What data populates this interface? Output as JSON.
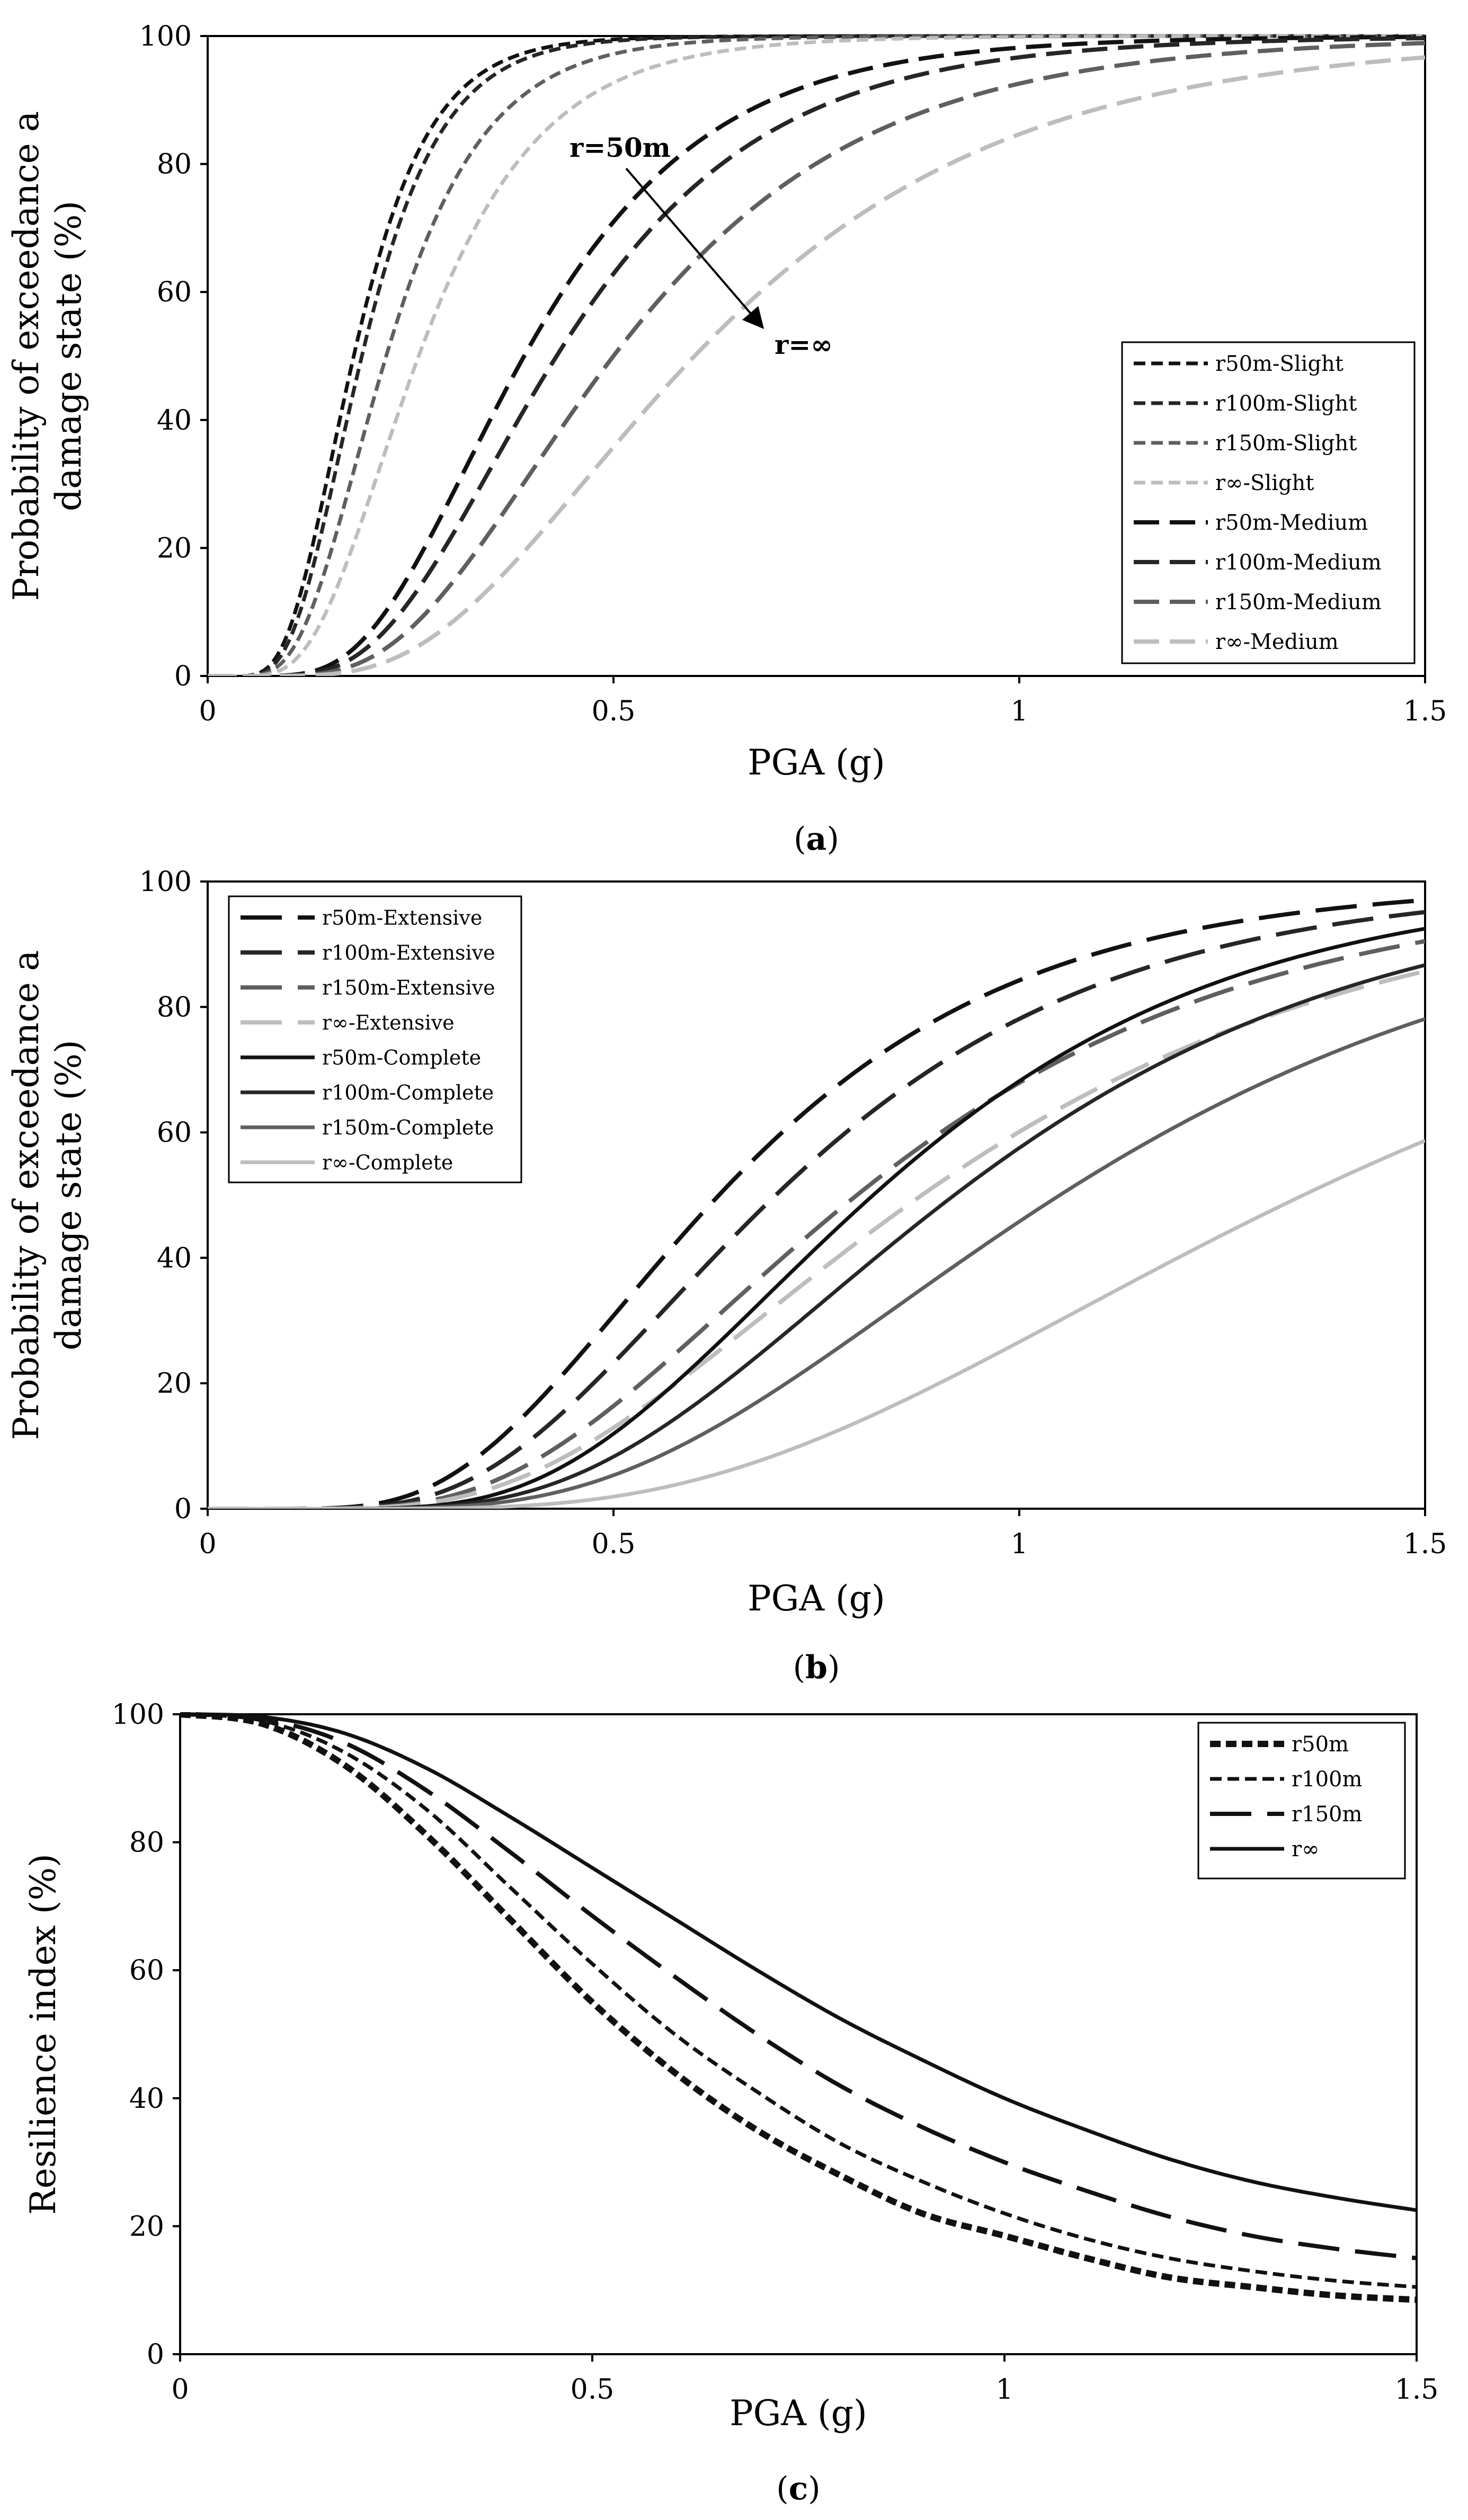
{
  "colors": {
    "black": "#111111",
    "dark": "#262626",
    "mid": "#5f5f5f",
    "light": "#bdbdbd",
    "axis": "#000000"
  },
  "chart_data": [
    {
      "id": "a",
      "type": "line",
      "caption": "(a)",
      "caption_letter": "a",
      "xlabel": "PGA (g)",
      "ylabel_lines": [
        "Probability of exceedance a",
        "damage state (%)"
      ],
      "xlim": [
        0,
        1.5
      ],
      "ylim": [
        0,
        100
      ],
      "xticks": [
        0,
        0.5,
        1,
        1.5
      ],
      "xtick_labels": [
        "0",
        "0.5",
        "1",
        "1.5"
      ],
      "yticks": [
        0,
        20,
        40,
        60,
        80,
        100
      ],
      "ytick_labels": [
        "0",
        "20",
        "40",
        "60",
        "80",
        "100"
      ],
      "grid": false,
      "legend_position": "bottom-right",
      "annotations": [
        {
          "text": "r=50m"
        },
        {
          "text": "r=∞"
        }
      ],
      "series": [
        {
          "name": "r50m-Slight",
          "model": "lognormal",
          "median": 0.18,
          "beta": 0.4,
          "color": "black",
          "dash": "short"
        },
        {
          "name": "r100m-Slight",
          "model": "lognormal",
          "median": 0.19,
          "beta": 0.4,
          "color": "dark",
          "dash": "short"
        },
        {
          "name": "r150m-Slight",
          "model": "lognormal",
          "median": 0.22,
          "beta": 0.43,
          "color": "mid",
          "dash": "short"
        },
        {
          "name": "r∞-Slight",
          "model": "lognormal",
          "median": 0.26,
          "beta": 0.45,
          "color": "light",
          "dash": "short"
        },
        {
          "name": "r50m-Medium",
          "model": "lognormal",
          "median": 0.39,
          "beta": 0.45,
          "color": "black",
          "dash": "medium"
        },
        {
          "name": "r100m-Medium",
          "model": "lognormal",
          "median": 0.43,
          "beta": 0.46,
          "color": "dark",
          "dash": "medium"
        },
        {
          "name": "r150m-Medium",
          "model": "lognormal",
          "median": 0.5,
          "beta": 0.48,
          "color": "mid",
          "dash": "medium"
        },
        {
          "name": "r∞-Medium",
          "model": "lognormal",
          "median": 0.6,
          "beta": 0.5,
          "color": "light",
          "dash": "medium"
        }
      ]
    },
    {
      "id": "b",
      "type": "line",
      "caption": "(b)",
      "caption_letter": "b",
      "xlabel": "PGA (g)",
      "ylabel_lines": [
        "Probability of exceedance a",
        "damage state (%)"
      ],
      "xlim": [
        0,
        1.5
      ],
      "ylim": [
        0,
        100
      ],
      "xticks": [
        0,
        0.5,
        1,
        1.5
      ],
      "xtick_labels": [
        "0",
        "0.5",
        "1",
        "1.5"
      ],
      "yticks": [
        0,
        20,
        40,
        60,
        80,
        100
      ],
      "ytick_labels": [
        "0",
        "20",
        "40",
        "60",
        "80",
        "100"
      ],
      "grid": false,
      "legend_position": "top-left",
      "series": [
        {
          "name": "r50m-Extensive",
          "model": "lognormal",
          "median": 0.63,
          "beta": 0.46,
          "color": "black",
          "dash": "long"
        },
        {
          "name": "r100m-Extensive",
          "model": "lognormal",
          "median": 0.7,
          "beta": 0.46,
          "color": "dark",
          "dash": "long"
        },
        {
          "name": "r150m-Extensive",
          "model": "lognormal",
          "median": 0.8,
          "beta": 0.48,
          "color": "mid",
          "dash": "long"
        },
        {
          "name": "r∞-Extensive",
          "model": "lognormal",
          "median": 0.88,
          "beta": 0.5,
          "color": "light",
          "dash": "long"
        },
        {
          "name": "r50m-Complete",
          "model": "lognormal",
          "median": 0.82,
          "beta": 0.42,
          "color": "black",
          "dash": "solid"
        },
        {
          "name": "r100m-Complete",
          "model": "lognormal",
          "median": 0.92,
          "beta": 0.44,
          "color": "dark",
          "dash": "solid"
        },
        {
          "name": "r150m-Complete",
          "model": "lognormal",
          "median": 1.05,
          "beta": 0.46,
          "color": "mid",
          "dash": "solid"
        },
        {
          "name": "r∞-Complete",
          "model": "lognormal",
          "median": 1.35,
          "beta": 0.48,
          "color": "light",
          "dash": "solid"
        }
      ]
    },
    {
      "id": "c",
      "type": "line",
      "caption": "(c)",
      "caption_letter": "c",
      "xlabel": "PGA (g)",
      "ylabel_lines": [
        "Resilience index (%)"
      ],
      "xlim": [
        0,
        1.5
      ],
      "ylim": [
        0,
        100
      ],
      "xticks": [
        0,
        0.5,
        1,
        1.5
      ],
      "xtick_labels": [
        "0",
        "0.5",
        "1",
        "1.5"
      ],
      "yticks": [
        0,
        20,
        40,
        60,
        80,
        100
      ],
      "ytick_labels": [
        "0",
        "20",
        "40",
        "60",
        "80",
        "100"
      ],
      "grid": false,
      "legend_position": "top-right",
      "series": [
        {
          "name": "r50m",
          "model": "points",
          "x": [
            0,
            0.1,
            0.2,
            0.3,
            0.4,
            0.5,
            0.6,
            0.7,
            0.8,
            0.9,
            1.0,
            1.1,
            1.2,
            1.3,
            1.4,
            1.5
          ],
          "y": [
            100,
            98.5,
            92,
            81,
            68,
            55,
            44,
            35,
            28,
            22,
            18.5,
            15,
            12,
            10.5,
            9.2,
            8.5
          ],
          "color": "black",
          "dash": "dotbold"
        },
        {
          "name": "r100m",
          "model": "points",
          "x": [
            0,
            0.1,
            0.2,
            0.3,
            0.4,
            0.5,
            0.6,
            0.7,
            0.8,
            0.9,
            1.0,
            1.1,
            1.2,
            1.3,
            1.4,
            1.5
          ],
          "y": [
            100,
            99,
            94,
            85,
            73,
            61,
            50,
            41,
            33,
            27,
            22,
            18,
            15,
            13,
            11.5,
            10.5
          ],
          "color": "black",
          "dash": "short"
        },
        {
          "name": "r150m",
          "model": "points",
          "x": [
            0,
            0.1,
            0.2,
            0.3,
            0.4,
            0.5,
            0.6,
            0.7,
            0.8,
            0.9,
            1.0,
            1.1,
            1.2,
            1.3,
            1.4,
            1.5
          ],
          "y": [
            100,
            99.3,
            95.5,
            88,
            78.5,
            68.5,
            59,
            50,
            42,
            35.5,
            30,
            25.5,
            21.5,
            18.5,
            16.5,
            15
          ],
          "color": "black",
          "dash": "long"
        },
        {
          "name": "r∞",
          "model": "points",
          "x": [
            0,
            0.1,
            0.2,
            0.3,
            0.4,
            0.5,
            0.6,
            0.7,
            0.8,
            0.9,
            1.0,
            1.1,
            1.2,
            1.3,
            1.4,
            1.5
          ],
          "y": [
            100,
            99.6,
            97,
            91.5,
            84,
            76,
            68,
            60,
            52.5,
            46,
            40,
            35,
            30.5,
            27,
            24.5,
            22.5
          ],
          "color": "black",
          "dash": "solid"
        }
      ]
    }
  ]
}
